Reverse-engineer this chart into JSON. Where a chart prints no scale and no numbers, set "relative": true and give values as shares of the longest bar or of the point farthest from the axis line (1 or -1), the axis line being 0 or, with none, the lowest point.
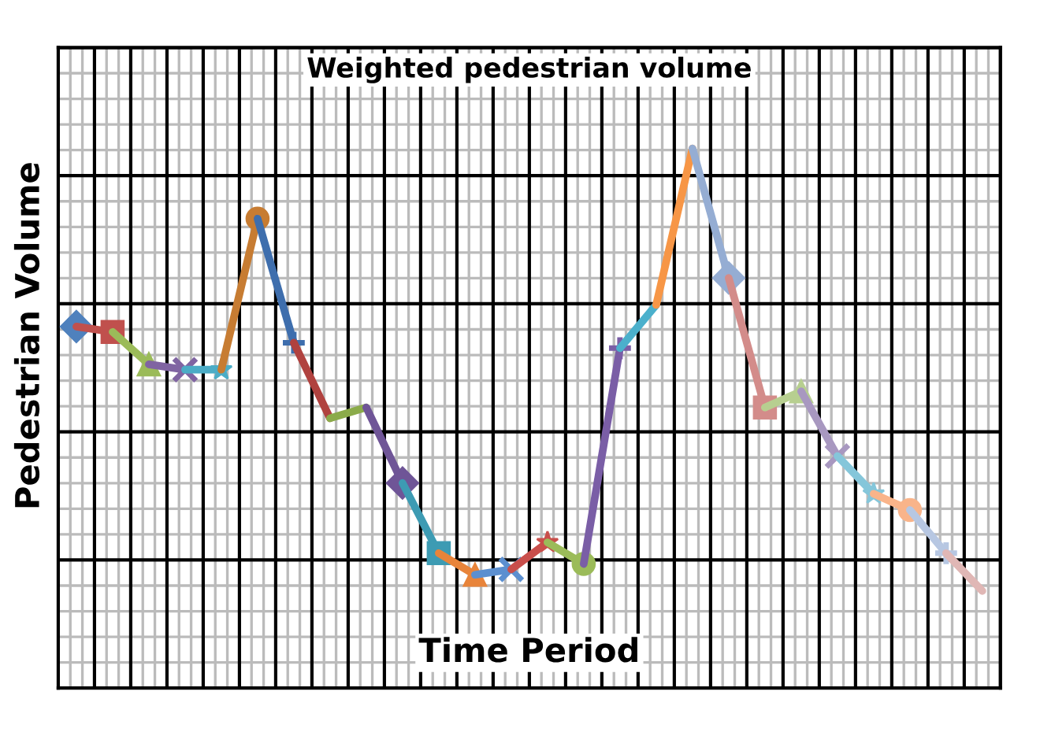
{
  "chart_data": {
    "type": "line",
    "title": "Weighted pedestrian volume",
    "xlabel": "Time Period",
    "ylabel": "Pedestrian Volume",
    "relative": true,
    "grid": true,
    "line_style": "solid",
    "categories": [
      null,
      null,
      null,
      null,
      null,
      null,
      null,
      null,
      null,
      null,
      null,
      null,
      null,
      null,
      null,
      null,
      null,
      null,
      null,
      null,
      null,
      null,
      null,
      null,
      null,
      null
    ],
    "series": [
      {
        "color": "#4f81bd",
        "marker": "diamond",
        "values": [
          0.67,
          null,
          null,
          null,
          null,
          null,
          null,
          null,
          null,
          null,
          null,
          null,
          null,
          null,
          null,
          null,
          null,
          null,
          null,
          null,
          null,
          null,
          null,
          null,
          null,
          null
        ]
      },
      {
        "color": "#c0504d",
        "marker": "square",
        "values": [
          0.67,
          0.66,
          null,
          null,
          null,
          null,
          null,
          null,
          null,
          null,
          null,
          null,
          null,
          null,
          null,
          null,
          null,
          null,
          null,
          null,
          null,
          null,
          null,
          null,
          null,
          null
        ]
      },
      {
        "color": "#9bbb59",
        "marker": "triangle",
        "values": [
          null,
          0.66,
          0.6,
          null,
          null,
          null,
          null,
          null,
          null,
          null,
          null,
          null,
          null,
          null,
          null,
          null,
          null,
          null,
          null,
          null,
          null,
          null,
          null,
          null,
          null,
          null
        ]
      },
      {
        "color": "#8064a2",
        "marker": "cross",
        "values": [
          null,
          null,
          0.6,
          0.59,
          null,
          null,
          null,
          null,
          null,
          null,
          null,
          null,
          null,
          null,
          null,
          null,
          null,
          null,
          null,
          null,
          null,
          null,
          null,
          null,
          null,
          null
        ]
      },
      {
        "color": "#4bacc6",
        "marker": "star",
        "values": [
          null,
          null,
          null,
          0.59,
          0.59,
          null,
          null,
          null,
          null,
          null,
          null,
          null,
          null,
          null,
          null,
          null,
          null,
          null,
          null,
          null,
          null,
          null,
          null,
          null,
          null,
          null
        ]
      },
      {
        "color": "#c77c32",
        "marker": "circle",
        "values": [
          null,
          null,
          null,
          null,
          0.59,
          0.87,
          null,
          null,
          null,
          null,
          null,
          null,
          null,
          null,
          null,
          null,
          null,
          null,
          null,
          null,
          null,
          null,
          null,
          null,
          null,
          null
        ]
      },
      {
        "color": "#3e6ead",
        "marker": "plus",
        "values": [
          null,
          null,
          null,
          null,
          null,
          0.87,
          0.64,
          null,
          null,
          null,
          null,
          null,
          null,
          null,
          null,
          null,
          null,
          null,
          null,
          null,
          null,
          null,
          null,
          null,
          null,
          null
        ]
      },
      {
        "color": "#b0423f",
        "marker": "none",
        "values": [
          null,
          null,
          null,
          null,
          null,
          null,
          0.64,
          0.5,
          null,
          null,
          null,
          null,
          null,
          null,
          null,
          null,
          null,
          null,
          null,
          null,
          null,
          null,
          null,
          null,
          null,
          null
        ]
      },
      {
        "color": "#8bab4a",
        "marker": "none",
        "values": [
          null,
          null,
          null,
          null,
          null,
          null,
          null,
          0.5,
          0.52,
          null,
          null,
          null,
          null,
          null,
          null,
          null,
          null,
          null,
          null,
          null,
          null,
          null,
          null,
          null,
          null,
          null
        ]
      },
      {
        "color": "#6f5597",
        "marker": "diamond",
        "values": [
          null,
          null,
          null,
          null,
          null,
          null,
          null,
          null,
          0.52,
          0.38,
          null,
          null,
          null,
          null,
          null,
          null,
          null,
          null,
          null,
          null,
          null,
          null,
          null,
          null,
          null,
          null
        ]
      },
      {
        "color": "#3d9bb3",
        "marker": "square",
        "values": [
          null,
          null,
          null,
          null,
          null,
          null,
          null,
          null,
          null,
          0.38,
          0.25,
          null,
          null,
          null,
          null,
          null,
          null,
          null,
          null,
          null,
          null,
          null,
          null,
          null,
          null,
          null
        ]
      },
      {
        "color": "#e8843a",
        "marker": "triangle",
        "values": [
          null,
          null,
          null,
          null,
          null,
          null,
          null,
          null,
          null,
          null,
          0.25,
          0.21,
          null,
          null,
          null,
          null,
          null,
          null,
          null,
          null,
          null,
          null,
          null,
          null,
          null,
          null
        ]
      },
      {
        "color": "#5b8fd0",
        "marker": "cross",
        "values": [
          null,
          null,
          null,
          null,
          null,
          null,
          null,
          null,
          null,
          null,
          null,
          0.21,
          0.22,
          null,
          null,
          null,
          null,
          null,
          null,
          null,
          null,
          null,
          null,
          null,
          null,
          null
        ]
      },
      {
        "color": "#c94e4b",
        "marker": "star",
        "values": [
          null,
          null,
          null,
          null,
          null,
          null,
          null,
          null,
          null,
          null,
          null,
          null,
          0.22,
          0.27,
          null,
          null,
          null,
          null,
          null,
          null,
          null,
          null,
          null,
          null,
          null,
          null
        ]
      },
      {
        "color": "#9bbb59",
        "marker": "circle",
        "values": [
          null,
          null,
          null,
          null,
          null,
          null,
          null,
          null,
          null,
          null,
          null,
          null,
          null,
          0.27,
          0.23,
          null,
          null,
          null,
          null,
          null,
          null,
          null,
          null,
          null,
          null,
          null
        ]
      },
      {
        "color": "#7a5ea6",
        "marker": "plus",
        "values": [
          null,
          null,
          null,
          null,
          null,
          null,
          null,
          null,
          null,
          null,
          null,
          null,
          null,
          null,
          0.23,
          0.63,
          null,
          null,
          null,
          null,
          null,
          null,
          null,
          null,
          null,
          null
        ]
      },
      {
        "color": "#4bb0cc",
        "marker": "none",
        "values": [
          null,
          null,
          null,
          null,
          null,
          null,
          null,
          null,
          null,
          null,
          null,
          null,
          null,
          null,
          null,
          0.63,
          0.71,
          null,
          null,
          null,
          null,
          null,
          null,
          null,
          null,
          null
        ]
      },
      {
        "color": "#f79646",
        "marker": "none",
        "values": [
          null,
          null,
          null,
          null,
          null,
          null,
          null,
          null,
          null,
          null,
          null,
          null,
          null,
          null,
          null,
          null,
          0.71,
          1,
          null,
          null,
          null,
          null,
          null,
          null,
          null,
          null
        ]
      },
      {
        "color": "#95add3",
        "marker": "diamond",
        "values": [
          null,
          null,
          null,
          null,
          null,
          null,
          null,
          null,
          null,
          null,
          null,
          null,
          null,
          null,
          null,
          null,
          null,
          1,
          0.76,
          null,
          null,
          null,
          null,
          null,
          null,
          null
        ]
      },
      {
        "color": "#d38c8a",
        "marker": "square",
        "values": [
          null,
          null,
          null,
          null,
          null,
          null,
          null,
          null,
          null,
          null,
          null,
          null,
          null,
          null,
          null,
          null,
          null,
          null,
          0.76,
          0.52,
          null,
          null,
          null,
          null,
          null,
          null
        ]
      },
      {
        "color": "#b7cf90",
        "marker": "triangle",
        "values": [
          null,
          null,
          null,
          null,
          null,
          null,
          null,
          null,
          null,
          null,
          null,
          null,
          null,
          null,
          null,
          null,
          null,
          null,
          null,
          0.52,
          0.55,
          null,
          null,
          null,
          null,
          null
        ]
      },
      {
        "color": "#a898c0",
        "marker": "cross",
        "values": [
          null,
          null,
          null,
          null,
          null,
          null,
          null,
          null,
          null,
          null,
          null,
          null,
          null,
          null,
          null,
          null,
          null,
          null,
          null,
          null,
          0.55,
          0.43,
          null,
          null,
          null,
          null
        ]
      },
      {
        "color": "#85c6da",
        "marker": "star",
        "values": [
          null,
          null,
          null,
          null,
          null,
          null,
          null,
          null,
          null,
          null,
          null,
          null,
          null,
          null,
          null,
          null,
          null,
          null,
          null,
          null,
          null,
          0.43,
          0.36,
          null,
          null,
          null
        ]
      },
      {
        "color": "#f9b48a",
        "marker": "circle",
        "values": [
          null,
          null,
          null,
          null,
          null,
          null,
          null,
          null,
          null,
          null,
          null,
          null,
          null,
          null,
          null,
          null,
          null,
          null,
          null,
          null,
          null,
          null,
          0.36,
          0.33,
          null,
          null
        ]
      },
      {
        "color": "#b7c7e2",
        "marker": "plus",
        "values": [
          null,
          null,
          null,
          null,
          null,
          null,
          null,
          null,
          null,
          null,
          null,
          null,
          null,
          null,
          null,
          null,
          null,
          null,
          null,
          null,
          null,
          null,
          null,
          0.33,
          0.25,
          null
        ]
      },
      {
        "color": "#e0b7b5",
        "marker": "none",
        "values": [
          null,
          null,
          null,
          null,
          null,
          null,
          null,
          null,
          null,
          null,
          null,
          null,
          null,
          null,
          null,
          null,
          null,
          null,
          null,
          null,
          null,
          null,
          null,
          null,
          0.25,
          0.18
        ]
      }
    ]
  }
}
